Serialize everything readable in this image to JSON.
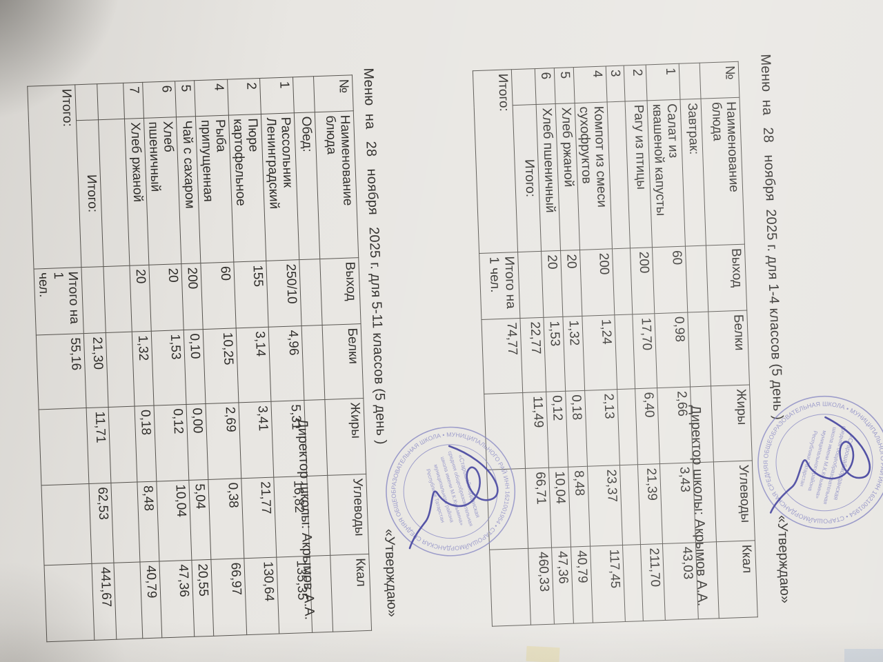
{
  "document": {
    "approval_top": {
      "line1": "«Утверждаю»",
      "line2": "Директор школы: Акрымов А.А."
    },
    "approval_mid": {
      "line1": "«Утверждаю»",
      "line2": "Директор школы: Акрымов А.А."
    },
    "heading_1": "Меню  на   28   ноября  2025 г. для 1-4 классов (5 день )",
    "heading_2": "Меню  на   28   ноября   2025 г. для 5-11 классов (5 день )",
    "table_1": {
      "columns": [
        "№",
        "Наименование\nблюда",
        "Выход",
        "Белки",
        "Жиры",
        "Углеводы",
        "Ккал"
      ],
      "rows": [
        [
          "",
          "Завтрак:",
          "",
          "",
          "",
          "",
          ""
        ],
        [
          "1",
          "Салат из\nквашеной капусты",
          "60",
          "0,98",
          "2,66",
          "3,43",
          "43,03"
        ],
        [
          "2",
          "Рагу из птицы",
          "200",
          "17,70",
          "6,40",
          "21,39",
          "211,70"
        ],
        [
          "3",
          "",
          "",
          "",
          "",
          "",
          ""
        ],
        [
          "4",
          "Компот из смеси\nсухофруктов",
          "200",
          "1,24",
          "2,13",
          "23,37",
          "117,45"
        ],
        [
          "5",
          "Хлеб ржаной",
          "20",
          "1,32",
          "0,18",
          "8,48",
          "40,79"
        ],
        [
          "6",
          "Хлеб пшеничный",
          "20",
          "1,53",
          "0,12",
          "10,04",
          "47,36"
        ],
        [
          "",
          {
            "t": "Итого:",
            "c": "ctr"
          },
          "",
          "22,77",
          "11,49",
          "66,71",
          "460,33"
        ],
        [
          {
            "t": "Итого:",
            "cs": 2
          },
          "Итого на\n1 чел.",
          "74,77",
          "",
          "",
          ""
        ]
      ]
    },
    "table_2": {
      "columns": [
        "№",
        "Наименование\nблюда",
        "Выход",
        "Белки",
        "Жиры",
        "Углеводы",
        "Ккал"
      ],
      "rows": [
        [
          "",
          "Обед:",
          "",
          "",
          "",
          "",
          ""
        ],
        [
          "1",
          "Рассольник\nЛенинградский",
          "250/10",
          "4,96",
          "5,31",
          "16,82",
          "135,35"
        ],
        [
          "2",
          "Пюре\nкартофельное",
          "155",
          "3,14",
          "3,41",
          "21,77",
          "130,64"
        ],
        [
          "4",
          "Рыба\nприпущенная",
          "60",
          "10,25",
          "2,69",
          "0,38",
          "66,97"
        ],
        [
          "5",
          "Чай с сахаром",
          "200",
          "0,10",
          "0,00",
          "5,04",
          "20,55"
        ],
        [
          "6",
          "Хлеб\nпшеничный",
          "20",
          "1,53",
          "0,12",
          "10,04",
          "47,36"
        ],
        [
          "7",
          "Хлеб ржаной",
          "20",
          "1,32",
          "0,18",
          "8,48",
          "40,79"
        ],
        [
          "",
          "",
          "",
          "",
          "",
          "",
          ""
        ],
        [
          "",
          {
            "t": "Итого:",
            "c": "ctr"
          },
          "",
          "21,30",
          "11,71",
          "62,53",
          "441,67"
        ],
        [
          {
            "t": "Итого:",
            "cs": 2
          },
          "Итого на 1\nчел.",
          "55,16",
          "",
          "",
          ""
        ]
      ]
    },
    "stamp": {
      "ring_text": "ИНН 1621001954 • СТАРОШАЙМОРДАНСКАЯ СРЕДНЯЯ ОБЩЕОБРАЗОВАТЕЛЬНАЯ ШКОЛА • МУНИЦИПАЛЬНОГО РАЙОНА •",
      "inner_lines": [
        "«Старошайморданская",
        "средняя общеобразовательная",
        "школа имени М.К.Кузьмина»",
        "муниципального района",
        "Республики Татарстан"
      ],
      "ink_color": "#7c7cbe",
      "signature_color": "#45449e"
    }
  }
}
